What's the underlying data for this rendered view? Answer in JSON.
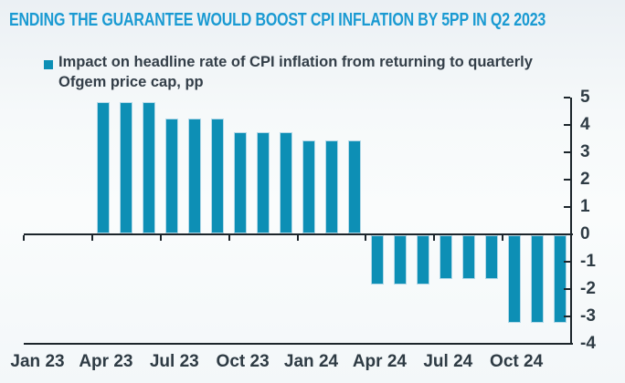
{
  "title": {
    "text": "ENDING THE GUARANTEE WOULD BOOST CPI INFLATION BY 5PP IN Q2 2023",
    "color": "#1a9ad2"
  },
  "legend": {
    "line1": "Impact on headline rate of CPI inflation from returning to quarterly",
    "line2": "Ofgem price cap, pp",
    "marker_color": "#0d8fb5"
  },
  "chart_data": {
    "type": "bar",
    "title": "ENDING THE GUARANTEE WOULD BOOST CPI INFLATION BY 5PP IN Q2 2023",
    "series_label": "Impact on headline rate of CPI inflation from returning to quarterly Ofgem price cap, pp",
    "unit": "pp",
    "categories": [
      "Jan 23",
      "Feb 23",
      "Mar 23",
      "Apr 23",
      "May 23",
      "Jun 23",
      "Jul 23",
      "Aug 23",
      "Sep 23",
      "Oct 23",
      "Nov 23",
      "Dec 23",
      "Jan 24",
      "Feb 24",
      "Mar 24",
      "Apr 24",
      "May 24",
      "Jun 24",
      "Jul 24",
      "Aug 24",
      "Sep 24",
      "Oct 24",
      "Nov 24",
      "Dec 24"
    ],
    "values": [
      0,
      0,
      0,
      4.8,
      4.8,
      4.8,
      4.2,
      4.2,
      4.2,
      3.7,
      3.7,
      3.7,
      3.4,
      3.4,
      3.4,
      -1.8,
      -1.8,
      -1.8,
      -1.6,
      -1.6,
      -1.6,
      -3.2,
      -3.2,
      -3.2
    ],
    "x_tick_labels": [
      "Jan 23",
      "Apr 23",
      "Jul 23",
      "Oct 23",
      "Jan 24",
      "Apr 24",
      "Jul 24",
      "Oct 24"
    ],
    "y_ticks": [
      5,
      4,
      3,
      2,
      1,
      0,
      -1,
      -2,
      -3,
      -4
    ],
    "ylim": [
      -4,
      5
    ],
    "grid": false,
    "y_axis_side": "right",
    "legend_position": "top-left",
    "bar_color": "#0d8fb5",
    "axis_color": "#1c252b",
    "label_color": "#2e3b44"
  }
}
